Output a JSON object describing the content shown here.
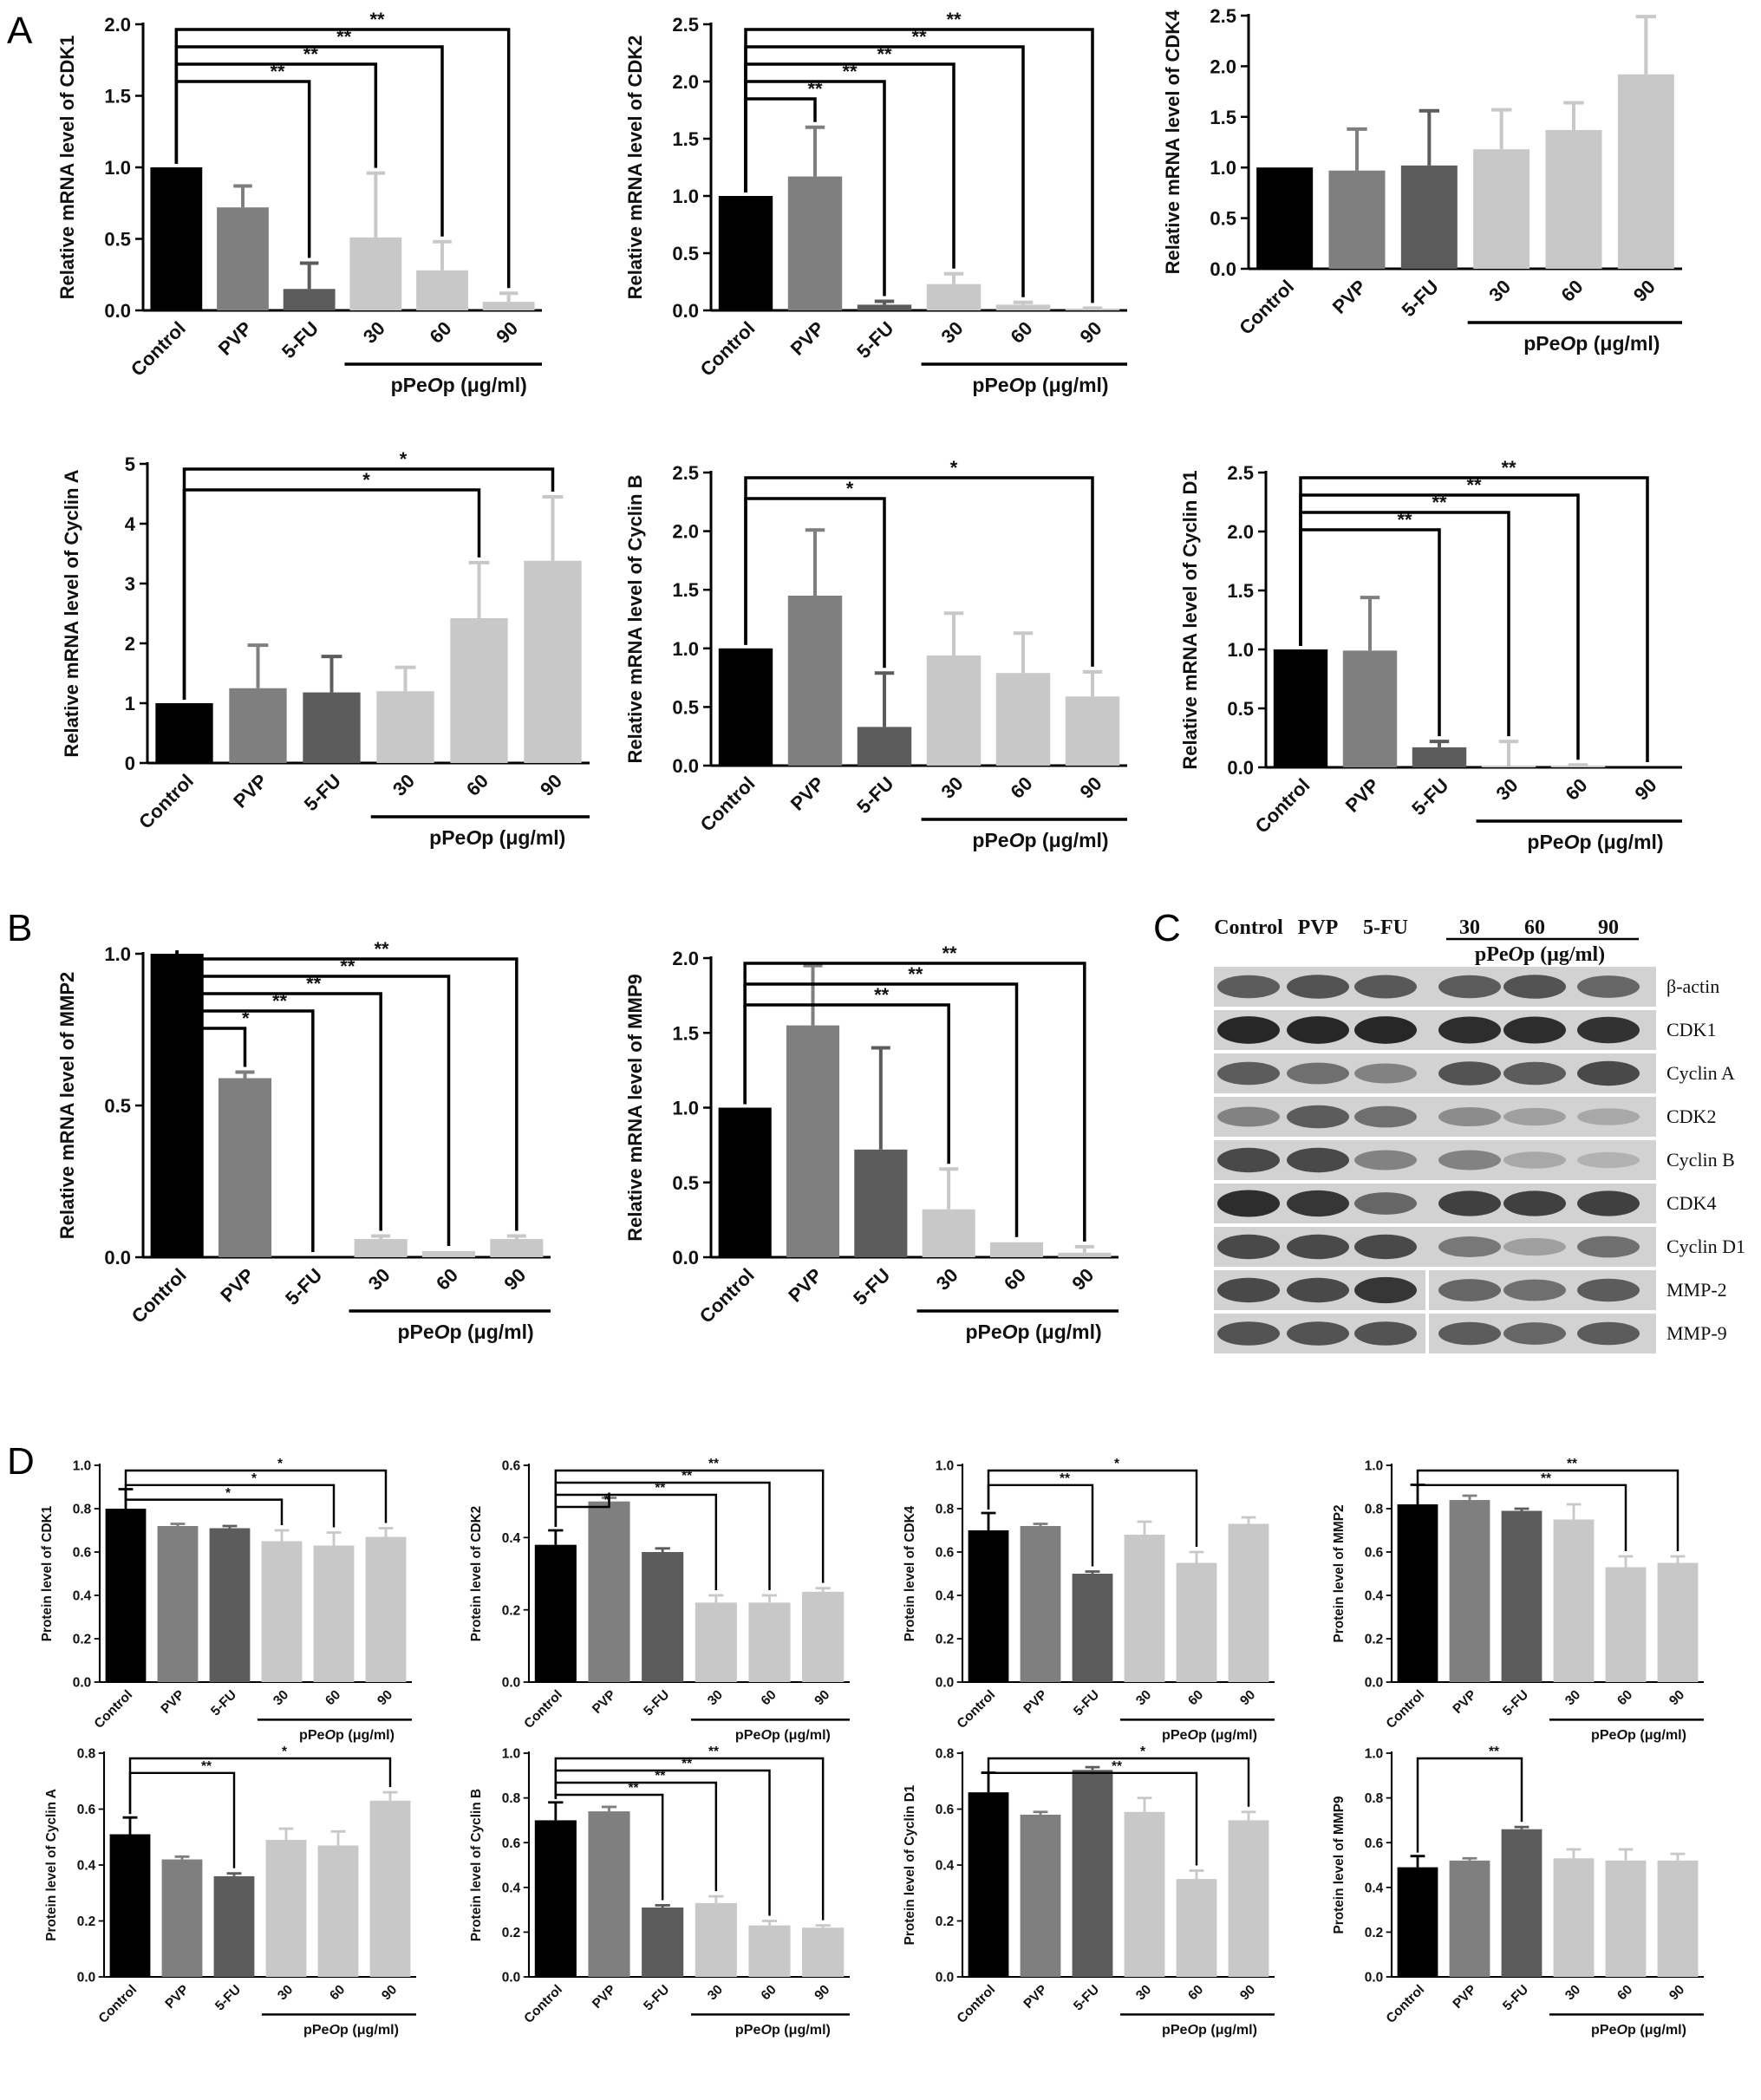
{
  "panel_letters": [
    "A",
    "B",
    "C",
    "D"
  ],
  "shared": {
    "categories": [
      "Control",
      "PVP",
      "5-FU",
      "30",
      "60",
      "90"
    ],
    "group_label": {
      "prefix": "pPe",
      "italic": "O",
      "suffix": "p (μg/ml)"
    },
    "colors": [
      "#000000",
      "#7f7f7f",
      "#5c5c5c",
      "#c8c8c8",
      "#c8c8c8",
      "#c8c8c8"
    ]
  },
  "chart_data": [
    {
      "id": "A1",
      "type": "bar",
      "ylabel": "Relative mRNA level of CDK1",
      "ylim": [
        0,
        2.0
      ],
      "yticks": [
        "0.0",
        "0.5",
        "1.0",
        "1.5",
        "2.0"
      ],
      "values": [
        1.0,
        0.72,
        0.15,
        0.51,
        0.28,
        0.06
      ],
      "errors": [
        0,
        0.15,
        0.18,
        0.45,
        0.2,
        0.06
      ],
      "sig": [
        {
          "to": 5,
          "label": "**"
        },
        {
          "to": 4,
          "label": "**"
        },
        {
          "to": 3,
          "label": "**"
        },
        {
          "to": 2,
          "label": "**"
        }
      ]
    },
    {
      "id": "A2",
      "type": "bar",
      "ylabel": "Relative mRNA level of CDK2",
      "ylim": [
        0,
        2.5
      ],
      "yticks": [
        "0.0",
        "0.5",
        "1.0",
        "1.5",
        "2.0",
        "2.5"
      ],
      "values": [
        1.0,
        1.17,
        0.05,
        0.23,
        0.05,
        0.01
      ],
      "errors": [
        0,
        0.43,
        0.03,
        0.09,
        0.02,
        0.01
      ],
      "sig": [
        {
          "to": 5,
          "label": "**"
        },
        {
          "to": 4,
          "label": "**"
        },
        {
          "to": 3,
          "label": "**"
        },
        {
          "to": 2,
          "label": "**"
        },
        {
          "to": 1,
          "label": "**"
        }
      ]
    },
    {
      "id": "A3",
      "type": "bar",
      "ylabel": "Relative mRNA level of CDK4",
      "ylim": [
        0,
        2.5
      ],
      "yticks": [
        "0.0",
        "0.5",
        "1.0",
        "1.5",
        "2.0",
        "2.5"
      ],
      "values": [
        1.0,
        0.97,
        1.02,
        1.18,
        1.37,
        1.92
      ],
      "errors": [
        0,
        0.41,
        0.54,
        0.39,
        0.27,
        0.57
      ],
      "sig": []
    },
    {
      "id": "A4",
      "type": "bar",
      "ylabel": "Relative mRNA level of Cyclin A",
      "ylim": [
        0,
        5
      ],
      "yticks": [
        "0",
        "1",
        "2",
        "3",
        "4",
        "5"
      ],
      "values": [
        1.0,
        1.25,
        1.18,
        1.2,
        2.42,
        3.38
      ],
      "errors": [
        0,
        0.72,
        0.6,
        0.4,
        0.93,
        1.07
      ],
      "sig": [
        {
          "to": 5,
          "label": "*"
        },
        {
          "to": 4,
          "label": "*"
        }
      ]
    },
    {
      "id": "A5",
      "type": "bar",
      "ylabel": "Relative mRNA level of Cyclin B",
      "ylim": [
        0,
        2.5
      ],
      "yticks": [
        "0.0",
        "0.5",
        "1.0",
        "1.5",
        "2.0",
        "2.5"
      ],
      "values": [
        1.0,
        1.45,
        0.33,
        0.94,
        0.79,
        0.59
      ],
      "errors": [
        0,
        0.56,
        0.46,
        0.36,
        0.34,
        0.21
      ],
      "sig": [
        {
          "to": 5,
          "label": "*"
        },
        {
          "to": 2,
          "label": "*"
        }
      ]
    },
    {
      "id": "A6",
      "type": "bar",
      "ylabel": "Relative mRNA level of Cyclin D1",
      "ylim": [
        0,
        2.5
      ],
      "yticks": [
        "0.0",
        "0.5",
        "1.0",
        "1.5",
        "2.0",
        "2.5"
      ],
      "values": [
        1.0,
        0.99,
        0.17,
        0.01,
        0.01,
        0.0
      ],
      "errors": [
        0,
        0.45,
        0.05,
        0.21,
        0.01,
        0.0
      ],
      "sig": [
        {
          "to": 5,
          "label": "**"
        },
        {
          "to": 4,
          "label": "**"
        },
        {
          "to": 3,
          "label": "**"
        },
        {
          "to": 2,
          "label": "**"
        }
      ]
    },
    {
      "id": "B1",
      "type": "bar",
      "ylabel": "Relative mRNA level of MMP2",
      "ylim": [
        0,
        1.0
      ],
      "yticks": [
        "0.0",
        "0.5",
        "1.0"
      ],
      "values": [
        1.0,
        0.59,
        0.0,
        0.06,
        0.02,
        0.06
      ],
      "errors": [
        0,
        0.02,
        0.0,
        0.01,
        0.0,
        0.01
      ],
      "sig": [
        {
          "to": 5,
          "label": "**"
        },
        {
          "to": 4,
          "label": "**"
        },
        {
          "to": 3,
          "label": "**"
        },
        {
          "to": 2,
          "label": "**"
        },
        {
          "to": 1,
          "label": "*"
        }
      ]
    },
    {
      "id": "B2",
      "type": "bar",
      "ylabel": "Relative mRNA level of MMP9",
      "ylim": [
        0,
        2.0
      ],
      "yticks": [
        "0.0",
        "0.5",
        "1.0",
        "1.5",
        "2.0"
      ],
      "values": [
        1.0,
        1.55,
        0.72,
        0.32,
        0.1,
        0.03
      ],
      "errors": [
        0,
        0.4,
        0.68,
        0.27,
        0.0,
        0.04
      ],
      "sig": [
        {
          "to": 5,
          "label": "**"
        },
        {
          "to": 4,
          "label": "**"
        },
        {
          "to": 3,
          "label": "**"
        }
      ]
    },
    {
      "id": "D1",
      "type": "bar",
      "ylabel": "Protein level of CDK1",
      "ylim": [
        0,
        1.0
      ],
      "yticks": [
        "0.0",
        "0.2",
        "0.4",
        "0.6",
        "0.8",
        "1.0"
      ],
      "values": [
        0.8,
        0.72,
        0.71,
        0.65,
        0.63,
        0.67
      ],
      "errors": [
        0.09,
        0.01,
        0.01,
        0.05,
        0.06,
        0.04
      ],
      "sig": [
        {
          "to": 5,
          "label": "*"
        },
        {
          "to": 4,
          "label": "*"
        },
        {
          "to": 3,
          "label": "*"
        }
      ]
    },
    {
      "id": "D2",
      "type": "bar",
      "ylabel": "Protein level of CDK2",
      "ylim": [
        0,
        0.6
      ],
      "yticks": [
        "0.0",
        "0.2",
        "0.4",
        "0.6"
      ],
      "values": [
        0.38,
        0.5,
        0.36,
        0.22,
        0.22,
        0.25
      ],
      "errors": [
        0.04,
        0.01,
        0.01,
        0.02,
        0.02,
        0.01
      ],
      "sig": [
        {
          "to": 5,
          "label": "**"
        },
        {
          "to": 4,
          "label": "**"
        },
        {
          "to": 3,
          "label": "**"
        },
        {
          "to": 1,
          "label": "*"
        }
      ]
    },
    {
      "id": "D3",
      "type": "bar",
      "ylabel": "Protein level of CDK4",
      "ylim": [
        0,
        1.0
      ],
      "yticks": [
        "0.0",
        "0.2",
        "0.4",
        "0.6",
        "0.8",
        "1.0"
      ],
      "values": [
        0.7,
        0.72,
        0.5,
        0.68,
        0.55,
        0.73
      ],
      "errors": [
        0.08,
        0.01,
        0.01,
        0.06,
        0.05,
        0.03
      ],
      "sig": [
        {
          "to": 4,
          "label": "*"
        },
        {
          "to": 2,
          "label": "**"
        }
      ]
    },
    {
      "id": "D4",
      "type": "bar",
      "ylabel": "Protein level of MMP2",
      "ylim": [
        0,
        1.0
      ],
      "yticks": [
        "0.0",
        "0.2",
        "0.4",
        "0.6",
        "0.8",
        "1.0"
      ],
      "values": [
        0.82,
        0.84,
        0.79,
        0.75,
        0.53,
        0.55
      ],
      "errors": [
        0.09,
        0.02,
        0.01,
        0.07,
        0.05,
        0.03
      ],
      "sig": [
        {
          "to": 5,
          "label": "**"
        },
        {
          "to": 4,
          "label": "**"
        }
      ]
    },
    {
      "id": "D5",
      "type": "bar",
      "ylabel": "Protein level of Cyclin A",
      "ylim": [
        0,
        0.8
      ],
      "yticks": [
        "0.0",
        "0.2",
        "0.4",
        "0.6",
        "0.8"
      ],
      "values": [
        0.51,
        0.42,
        0.36,
        0.49,
        0.47,
        0.63
      ],
      "errors": [
        0.06,
        0.01,
        0.01,
        0.04,
        0.05,
        0.03
      ],
      "sig": [
        {
          "to": 5,
          "label": "*"
        },
        {
          "to": 2,
          "label": "**"
        }
      ]
    },
    {
      "id": "D6",
      "type": "bar",
      "ylabel": "Protein level of Cyclin B",
      "ylim": [
        0,
        1.0
      ],
      "yticks": [
        "0.0",
        "0.2",
        "0.4",
        "0.6",
        "0.8",
        "1.0"
      ],
      "values": [
        0.7,
        0.74,
        0.31,
        0.33,
        0.23,
        0.22
      ],
      "errors": [
        0.08,
        0.02,
        0.01,
        0.03,
        0.02,
        0.01
      ],
      "sig": [
        {
          "to": 5,
          "label": "**"
        },
        {
          "to": 4,
          "label": "**"
        },
        {
          "to": 3,
          "label": "**"
        },
        {
          "to": 2,
          "label": "**"
        }
      ]
    },
    {
      "id": "D7",
      "type": "bar",
      "ylabel": "Protein level of Cyclin D1",
      "ylim": [
        0,
        0.8
      ],
      "yticks": [
        "0.0",
        "0.2",
        "0.4",
        "0.6",
        "0.8"
      ],
      "values": [
        0.66,
        0.58,
        0.74,
        0.59,
        0.35,
        0.56
      ],
      "errors": [
        0.07,
        0.01,
        0.01,
        0.05,
        0.03,
        0.03
      ],
      "sig": [
        {
          "to": 5,
          "label": "*"
        },
        {
          "to": 4,
          "label": "**"
        }
      ]
    },
    {
      "id": "D8",
      "type": "bar",
      "ylabel": "Protein level of MMP9",
      "ylim": [
        0,
        1.0
      ],
      "yticks": [
        "0.0",
        "0.2",
        "0.4",
        "0.6",
        "0.8",
        "1.0"
      ],
      "values": [
        0.49,
        0.52,
        0.66,
        0.53,
        0.52,
        0.52
      ],
      "errors": [
        0.05,
        0.01,
        0.01,
        0.04,
        0.05,
        0.03
      ],
      "sig": [
        {
          "to": 2,
          "label": "**"
        }
      ]
    }
  ],
  "western_blot": {
    "columns": [
      "Control",
      "PVP",
      "5-FU",
      "30",
      "60",
      "90"
    ],
    "group_label": {
      "prefix": "pPe",
      "italic": "O",
      "suffix": "p (μg/ml)"
    },
    "rows": [
      "β-actin",
      "CDK1",
      "Cyclin A",
      "CDK2",
      "Cyclin B",
      "CDK4",
      "Cyclin D1",
      "MMP-2",
      "MMP-9"
    ],
    "band_intensity": [
      [
        0.7,
        0.75,
        0.72,
        0.7,
        0.75,
        0.65
      ],
      [
        0.98,
        0.98,
        0.98,
        0.95,
        0.95,
        0.92
      ],
      [
        0.7,
        0.6,
        0.5,
        0.75,
        0.7,
        0.8
      ],
      [
        0.5,
        0.7,
        0.6,
        0.45,
        0.35,
        0.3
      ],
      [
        0.8,
        0.8,
        0.5,
        0.5,
        0.3,
        0.25
      ],
      [
        0.95,
        0.9,
        0.65,
        0.85,
        0.85,
        0.85
      ],
      [
        0.8,
        0.8,
        0.8,
        0.55,
        0.35,
        0.6
      ],
      [
        0.8,
        0.8,
        0.9,
        0.65,
        0.6,
        0.7
      ],
      [
        0.75,
        0.75,
        0.75,
        0.7,
        0.65,
        0.7
      ]
    ]
  }
}
